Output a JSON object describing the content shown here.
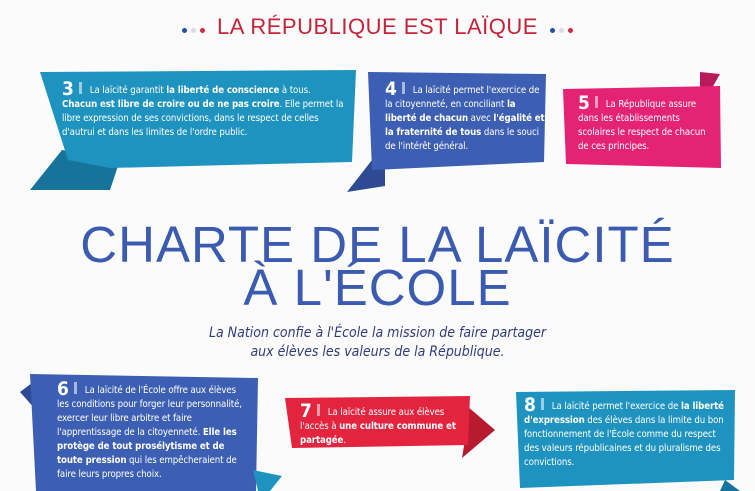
{
  "header": {
    "title": "LA RÉPUBLIQUE EST LAÏQUE",
    "dot_colors": [
      "#2a4ea0",
      "#d9dde3",
      "#d6283a"
    ]
  },
  "title": {
    "line1": "CHARTE DE LA LAÏCITÉ",
    "line2": "À L'ÉCOLE"
  },
  "subtitle": {
    "line1": "La Nation confie à l'École la mission de faire partager",
    "line2": "aux élèves les valeurs de la République."
  },
  "colors": {
    "teal": "#1f93bf",
    "blue": "#3c5fb3",
    "pink": "#e42374",
    "red": "#e3243f"
  },
  "articles": [
    {
      "number": "3",
      "segments": [
        {
          "text": "La laïcité garantit ",
          "bold": false
        },
        {
          "text": "la liberté de conscience",
          "bold": true
        },
        {
          "text": " à tous. ",
          "bold": false
        },
        {
          "text": "Chacun est libre de croire ou de ne pas croire",
          "bold": true
        },
        {
          "text": ". Elle permet la libre expression de ses convictions, dans le respect de celles d'autrui et dans les limites de l'ordre public.",
          "bold": false
        }
      ]
    },
    {
      "number": "4",
      "segments": [
        {
          "text": "La laïcité permet l'exercice de la citoyenneté, en conciliant ",
          "bold": false
        },
        {
          "text": "la liberté de chacun",
          "bold": true
        },
        {
          "text": " avec ",
          "bold": false
        },
        {
          "text": "l'égalité et la fraternité de tous",
          "bold": true
        },
        {
          "text": " dans le souci de l'intérêt général.",
          "bold": false
        }
      ]
    },
    {
      "number": "5",
      "segments": [
        {
          "text": "La République assure dans les établissements scolaires le respect de chacun de ces principes.",
          "bold": false
        }
      ]
    },
    {
      "number": "6",
      "segments": [
        {
          "text": "La laïcité de l'École offre aux élèves les conditions pour forger leur personnalité, exercer leur libre arbitre et faire l'apprentissage de la citoyenneté. ",
          "bold": false
        },
        {
          "text": "Elle les protège de tout prosélytisme et de toute pression",
          "bold": true
        },
        {
          "text": " qui les empêcheraient de faire leurs propres choix.",
          "bold": false
        }
      ]
    },
    {
      "number": "7",
      "segments": [
        {
          "text": "La laïcité assure aux élèves l'accès à ",
          "bold": false
        },
        {
          "text": "une culture commune et partagée",
          "bold": true
        },
        {
          "text": ".",
          "bold": false
        }
      ]
    },
    {
      "number": "8",
      "segments": [
        {
          "text": "La laïcité permet l'exercice de ",
          "bold": false
        },
        {
          "text": "la liberté d'expression",
          "bold": true
        },
        {
          "text": " des élèves dans la limite du bon fonctionnement de l'École comme du respect des valeurs républicaines et du pluralisme des convictions.",
          "bold": false
        }
      ]
    }
  ]
}
